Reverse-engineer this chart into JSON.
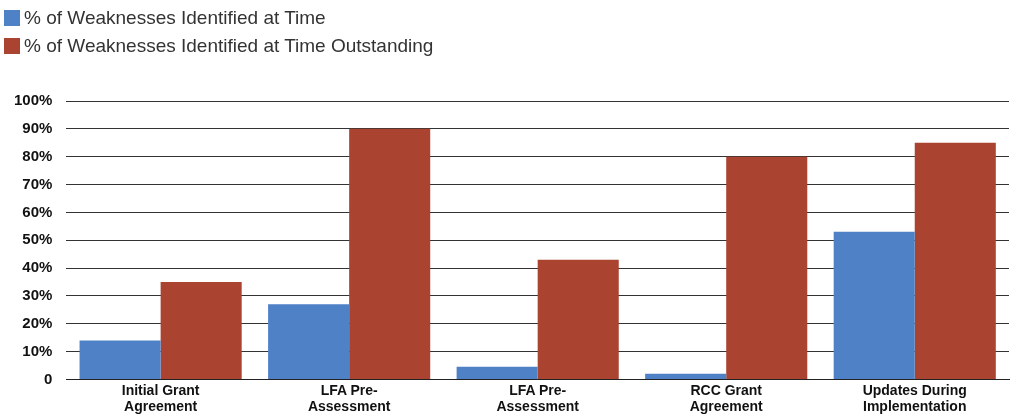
{
  "chart_data": {
    "type": "bar",
    "categories": [
      "Initial Grant Agreement",
      "LFA Pre-Assessment",
      "LFA Pre-Assessment",
      "RCC Grant Agreement",
      "Updates During Implementation"
    ],
    "series": [
      {
        "name": "% of Weaknesses Identified at Time",
        "color": "#4f81c7",
        "values": [
          14,
          27,
          4.5,
          2,
          53
        ]
      },
      {
        "name": "% of Weaknesses Identified at Time Outstanding",
        "color": "#ab4331",
        "values": [
          35,
          90,
          43,
          80,
          85
        ]
      }
    ],
    "ylim": [
      0,
      100
    ],
    "yticks": [
      0,
      {
        "value": 10,
        "label": "10%"
      },
      {
        "value": 20,
        "label": "20%"
      },
      {
        "value": 30,
        "label": "30%"
      },
      {
        "value": 40,
        "label": "40%"
      },
      {
        "value": 50,
        "label": "50%"
      },
      {
        "value": 60,
        "label": "60%"
      },
      {
        "value": 70,
        "label": "70%"
      },
      {
        "value": 80,
        "label": "80%"
      },
      {
        "value": 90,
        "label": "90%"
      },
      {
        "value": 100,
        "label": "100%"
      }
    ],
    "grid": "y",
    "legend": "top left"
  }
}
